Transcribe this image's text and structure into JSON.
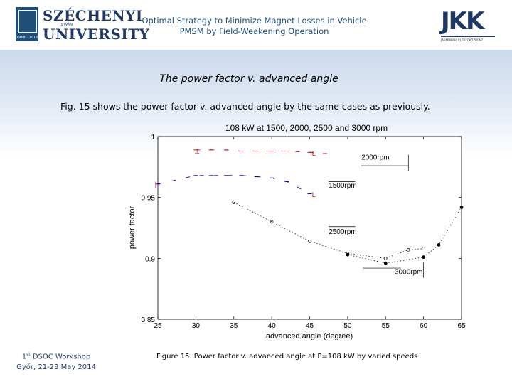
{
  "header": {
    "title": "Optimal Strategy to Minimize Magnet Losses in Vehicle PMSM by Field-Weakening Operation",
    "university_line1": "SZÉCHENYI",
    "university_small": "ISTVÁN",
    "university_line2": "UNIVERSITY",
    "university_years": "1968 · 2018",
    "jkk_letters": "JKK",
    "jkk_sub": "JÁRMŰIPARI KUTATÓKÖZPONT"
  },
  "slide": {
    "title": "The power factor v. advanced  angle",
    "text": "Fig. 15 shows the power factor v. advanced angle by the same cases as previously."
  },
  "footer": {
    "workshop_sup": "st",
    "workshop_num": "1",
    "workshop": "DSOC Workshop",
    "place_date": "Győr, 21-23 May 2014",
    "caption": "Figure 15. Power factor v. advanced angle at P=108 kW by varied speeds"
  },
  "chart_data": {
    "type": "line",
    "title": "108 kW at  1500, 2000, 2500  and  3000 rpm",
    "xlabel": "advanced angle (degree)",
    "ylabel": "power factor",
    "xlim": [
      25,
      65
    ],
    "ylim": [
      0.85,
      1.0
    ],
    "xticks": [
      25,
      30,
      35,
      40,
      45,
      50,
      55,
      60,
      65
    ],
    "yticks": [
      0.85,
      0.9,
      0.95,
      1.0
    ],
    "ytick_labels": [
      "0.85",
      "0.9",
      "0.95",
      "1"
    ],
    "grid": false,
    "annotations": [
      "2000rpm",
      "1500rpm",
      "2500rpm",
      "3000rpm"
    ],
    "series": [
      {
        "name": "2000rpm",
        "marker": "dash",
        "color": "#cc0000",
        "x": [
          30,
          32,
          34,
          36,
          38,
          40,
          42,
          45,
          47
        ],
        "y": [
          0.989,
          0.989,
          0.989,
          0.988,
          0.988,
          0.988,
          0.988,
          0.987,
          0.986
        ]
      },
      {
        "name": "1500rpm",
        "marker": "dash",
        "color": "#0000aa",
        "x": [
          25,
          30,
          32,
          34,
          36,
          38,
          40,
          42,
          45
        ],
        "y": [
          0.961,
          0.968,
          0.968,
          0.968,
          0.968,
          0.967,
          0.966,
          0.963,
          0.953
        ]
      },
      {
        "name": "2500rpm",
        "marker": "circle",
        "color": "#000000",
        "x": [
          35,
          40,
          45,
          50,
          55,
          58,
          60
        ],
        "y": [
          0.946,
          0.93,
          0.914,
          0.904,
          0.9,
          0.907,
          0.908
        ]
      },
      {
        "name": "3000rpm",
        "marker": "dot",
        "color": "#000000",
        "x": [
          50,
          55,
          60,
          62,
          65
        ],
        "y": [
          0.903,
          0.896,
          0.901,
          0.911,
          0.942
        ]
      }
    ]
  }
}
